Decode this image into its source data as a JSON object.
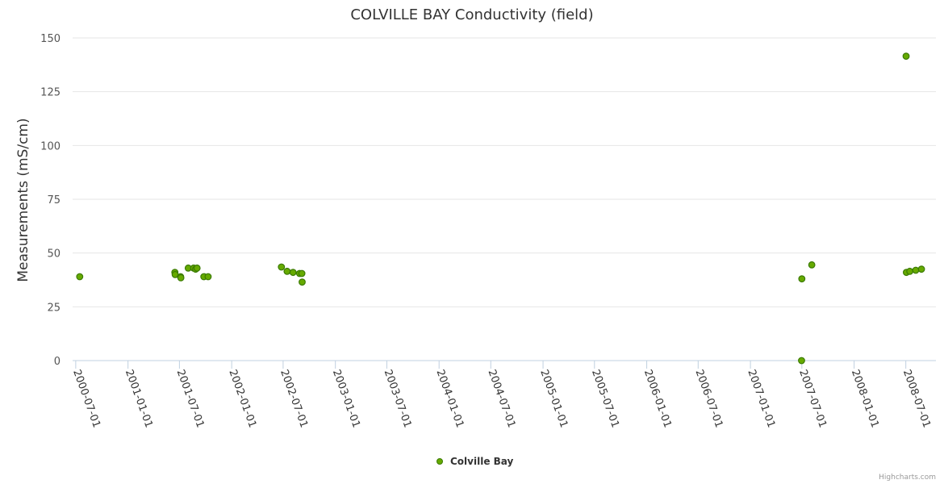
{
  "chart_data": {
    "type": "scatter",
    "title": "COLVILLE BAY Conductivity (field)",
    "ylabel": "Measurements (mS/cm)",
    "ylim": [
      0,
      150
    ],
    "yticks": [
      "0",
      "25",
      "50",
      "75",
      "100",
      "125",
      "150"
    ],
    "xlim": [
      "2000-06-20",
      "2008-10-15"
    ],
    "xticks": [
      "2000-07-01",
      "2001-01-01",
      "2001-07-01",
      "2002-01-01",
      "2002-07-01",
      "2003-01-01",
      "2003-07-01",
      "2004-01-01",
      "2004-07-01",
      "2005-01-01",
      "2005-07-01",
      "2006-01-01",
      "2006-07-01",
      "2007-01-01",
      "2007-07-01",
      "2008-01-01",
      "2008-07-01"
    ],
    "grid": true,
    "legend_position": "bottom-center",
    "marker_color": "#66aa00",
    "marker_stroke": "#3a7a00",
    "series": [
      {
        "name": "Colville Bay",
        "points": [
          {
            "x": "2000-07-15",
            "y": 39
          },
          {
            "x": "2001-06-15",
            "y": 41
          },
          {
            "x": "2001-06-16",
            "y": 40
          },
          {
            "x": "2001-07-05",
            "y": 39
          },
          {
            "x": "2001-07-06",
            "y": 38.5
          },
          {
            "x": "2001-08-01",
            "y": 43
          },
          {
            "x": "2001-08-20",
            "y": 43
          },
          {
            "x": "2001-08-27",
            "y": 42.5
          },
          {
            "x": "2001-09-01",
            "y": 43
          },
          {
            "x": "2001-09-25",
            "y": 39
          },
          {
            "x": "2001-10-10",
            "y": 39
          },
          {
            "x": "2002-06-25",
            "y": 43.5
          },
          {
            "x": "2002-07-15",
            "y": 41.5
          },
          {
            "x": "2002-08-05",
            "y": 41
          },
          {
            "x": "2002-08-28",
            "y": 40.5
          },
          {
            "x": "2002-09-05",
            "y": 40.5
          },
          {
            "x": "2002-09-06",
            "y": 36.5
          },
          {
            "x": "2007-06-30",
            "y": 0
          },
          {
            "x": "2007-07-01",
            "y": 38
          },
          {
            "x": "2007-08-05",
            "y": 44.5
          },
          {
            "x": "2008-07-02",
            "y": 141.5
          },
          {
            "x": "2008-07-03",
            "y": 41
          },
          {
            "x": "2008-07-15",
            "y": 41.5
          },
          {
            "x": "2008-08-05",
            "y": 42
          },
          {
            "x": "2008-08-25",
            "y": 42.5
          }
        ]
      }
    ]
  },
  "legend": {
    "label": "Colville Bay"
  },
  "credits": "Highcharts.com"
}
